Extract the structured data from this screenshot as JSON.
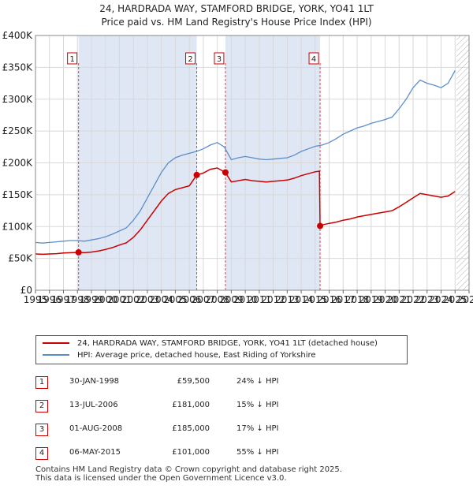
{
  "title_line1": "24, HARDRADA WAY, STAMFORD BRIDGE, YORK, YO41 1LT",
  "title_line2": "Price paid vs. HM Land Registry's House Price Index (HPI)",
  "colors": {
    "price_paid": "#cc0000",
    "hpi": "#5b8ec9",
    "shade": "#dfe7f5",
    "grid": "#d8d8d8",
    "future_hatch": "#b0b0b0"
  },
  "chart_data": {
    "type": "line",
    "title": "Price paid vs. HM Land Registry's House Price Index (HPI)",
    "xlim": [
      1995,
      2026
    ],
    "ylim": [
      0,
      400000
    ],
    "x_ticks": [
      "1995",
      "1996",
      "1997",
      "1998",
      "1999",
      "2000",
      "2001",
      "2002",
      "2003",
      "2004",
      "2005",
      "2006",
      "2007",
      "2008",
      "2009",
      "2010",
      "2011",
      "2012",
      "2013",
      "2014",
      "2015",
      "2016",
      "2017",
      "2018",
      "2019",
      "2020",
      "2021",
      "2022",
      "2023",
      "2024",
      "2025",
      "2026"
    ],
    "y_ticks": [
      {
        "value": 0,
        "label": "£0"
      },
      {
        "value": 50000,
        "label": "£50K"
      },
      {
        "value": 100000,
        "label": "£100K"
      },
      {
        "value": 150000,
        "label": "£150K"
      },
      {
        "value": 200000,
        "label": "£200K"
      },
      {
        "value": 250000,
        "label": "£250K"
      },
      {
        "value": 300000,
        "label": "£300K"
      },
      {
        "value": 350000,
        "label": "£350K"
      },
      {
        "value": 400000,
        "label": "£400K"
      }
    ],
    "shaded_periods": [
      [
        1998.08,
        2006.53
      ],
      [
        2008.58,
        2015.35
      ]
    ],
    "future_from": 2025.1,
    "series": [
      {
        "name": "HPI: Average price, detached house, East Riding of Yorkshire",
        "x": [
          1995.0,
          1995.5,
          1996.0,
          1996.5,
          1997.0,
          1997.5,
          1998.0,
          1998.5,
          1999.0,
          1999.5,
          2000.0,
          2000.5,
          2001.0,
          2001.5,
          2002.0,
          2002.5,
          2003.0,
          2003.5,
          2004.0,
          2004.5,
          2005.0,
          2005.5,
          2006.0,
          2006.5,
          2007.0,
          2007.5,
          2008.0,
          2008.5,
          2009.0,
          2009.5,
          2010.0,
          2010.5,
          2011.0,
          2011.5,
          2012.0,
          2012.5,
          2013.0,
          2013.5,
          2014.0,
          2014.5,
          2015.0,
          2015.5,
          2016.0,
          2016.5,
          2017.0,
          2017.5,
          2018.0,
          2018.5,
          2019.0,
          2019.5,
          2020.0,
          2020.5,
          2021.0,
          2021.5,
          2022.0,
          2022.5,
          2023.0,
          2023.5,
          2024.0,
          2024.5,
          2025.0
        ],
        "values": [
          75000,
          74000,
          75000,
          76000,
          77000,
          78000,
          78000,
          77000,
          79000,
          81000,
          84000,
          88000,
          93000,
          98000,
          110000,
          125000,
          145000,
          165000,
          185000,
          200000,
          208000,
          212000,
          215000,
          218000,
          222000,
          228000,
          232000,
          225000,
          205000,
          208000,
          210000,
          208000,
          206000,
          205000,
          206000,
          207000,
          208000,
          212000,
          218000,
          222000,
          226000,
          228000,
          232000,
          238000,
          245000,
          250000,
          255000,
          258000,
          262000,
          265000,
          268000,
          272000,
          285000,
          300000,
          318000,
          330000,
          325000,
          322000,
          318000,
          325000,
          345000
        ]
      },
      {
        "name": "24, HARDRADA WAY, STAMFORD BRIDGE, YORK, YO41 1LT (detached house)",
        "x": [
          1995.0,
          1995.5,
          1996.0,
          1996.5,
          1997.0,
          1997.5,
          1998.08,
          1998.5,
          1999.0,
          1999.5,
          2000.0,
          2000.5,
          2001.0,
          2001.5,
          2002.0,
          2002.5,
          2003.0,
          2003.5,
          2004.0,
          2004.5,
          2005.0,
          2005.5,
          2006.0,
          2006.53,
          2007.0,
          2007.5,
          2008.0,
          2008.58,
          2009.0,
          2009.5,
          2010.0,
          2010.5,
          2011.0,
          2011.5,
          2012.0,
          2012.5,
          2013.0,
          2013.5,
          2014.0,
          2014.5,
          2015.0,
          2015.3,
          2015.35,
          2015.6,
          2016.0,
          2016.5,
          2017.0,
          2017.5,
          2018.0,
          2018.5,
          2019.0,
          2019.5,
          2020.0,
          2020.5,
          2021.0,
          2021.5,
          2022.0,
          2022.5,
          2023.0,
          2023.5,
          2024.0,
          2024.5,
          2025.0
        ],
        "values": [
          57000,
          56500,
          57000,
          57500,
          58500,
          59000,
          59500,
          59000,
          60000,
          61500,
          64000,
          67000,
          71000,
          74500,
          83000,
          95000,
          110000,
          125000,
          140000,
          152000,
          158000,
          161000,
          164000,
          181000,
          184000,
          190000,
          192000,
          185000,
          170000,
          172000,
          174000,
          172000,
          171000,
          170000,
          171000,
          172000,
          173000,
          176000,
          180000,
          183000,
          186000,
          187000,
          101000,
          103000,
          105000,
          107000,
          110000,
          112000,
          115000,
          117000,
          119000,
          121000,
          123000,
          125000,
          131000,
          138000,
          145000,
          152000,
          150000,
          148000,
          146000,
          148000,
          155000
        ]
      }
    ],
    "sale_markers": [
      {
        "label": "1",
        "x": 1998.08,
        "y": 59500
      },
      {
        "label": "2",
        "x": 2006.53,
        "y": 181000
      },
      {
        "label": "3",
        "x": 2008.58,
        "y": 185000
      },
      {
        "label": "4",
        "x": 2015.35,
        "y": 101000
      }
    ]
  },
  "legend": {
    "price_paid": "24, HARDRADA WAY, STAMFORD BRIDGE, YORK, YO41 1LT (detached house)",
    "hpi": "HPI: Average price, detached house, East Riding of Yorkshire"
  },
  "sales": [
    {
      "num": "1",
      "date": "30-JAN-1998",
      "price": "£59,500",
      "hpi": "24% ↓ HPI"
    },
    {
      "num": "2",
      "date": "13-JUL-2006",
      "price": "£181,000",
      "hpi": "15% ↓ HPI"
    },
    {
      "num": "3",
      "date": "01-AUG-2008",
      "price": "£185,000",
      "hpi": "17% ↓ HPI"
    },
    {
      "num": "4",
      "date": "06-MAY-2015",
      "price": "£101,000",
      "hpi": "55% ↓ HPI"
    }
  ],
  "footer_line1": "Contains HM Land Registry data © Crown copyright and database right 2025.",
  "footer_line2": "This data is licensed under the Open Government Licence v3.0."
}
